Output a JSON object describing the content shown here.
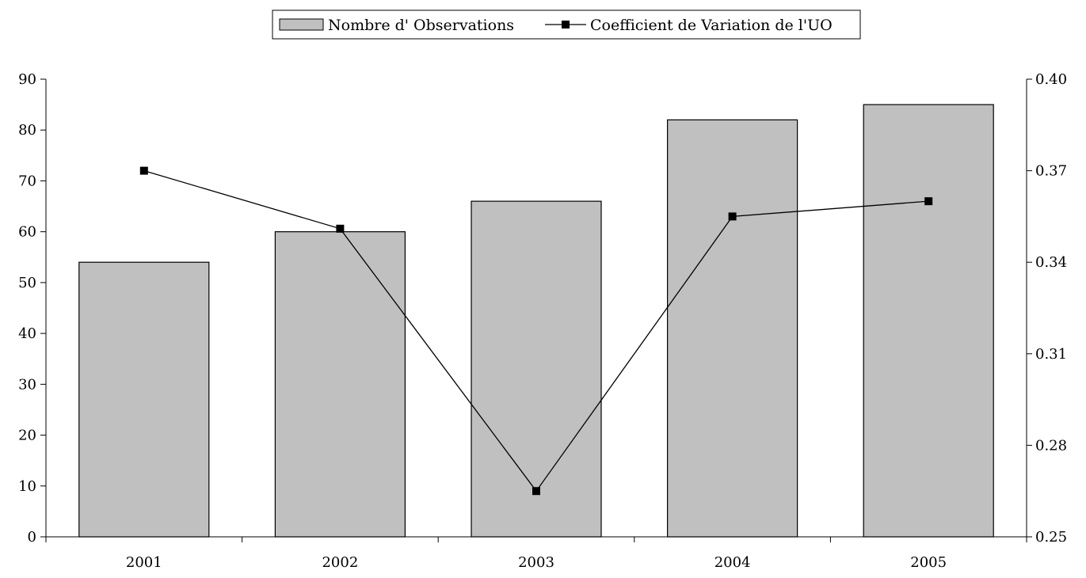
{
  "chart_data": {
    "type": "bar",
    "categories": [
      "2001",
      "2002",
      "2003",
      "2004",
      "2005"
    ],
    "series": [
      {
        "name": "Nombre d' Observations",
        "type": "bar",
        "axis": "left",
        "values": [
          54,
          60,
          66,
          82,
          85
        ],
        "color": "#c0c0c0"
      },
      {
        "name": "Coefficient de Variation de l'UO",
        "type": "line",
        "axis": "right",
        "values": [
          0.37,
          0.351,
          0.265,
          0.355,
          0.36
        ],
        "color": "#000000",
        "marker": "square"
      }
    ],
    "y_left": {
      "range": [
        0,
        90
      ],
      "ticks": [
        "0",
        "10",
        "20",
        "30",
        "40",
        "50",
        "60",
        "70",
        "80",
        "90"
      ]
    },
    "y_right": {
      "range": [
        0.25,
        0.4
      ],
      "ticks": [
        "0.25",
        "0.28",
        "0.31",
        "0.34",
        "0.37",
        "0.40"
      ]
    },
    "grid": false,
    "legend_position": "top-center"
  }
}
